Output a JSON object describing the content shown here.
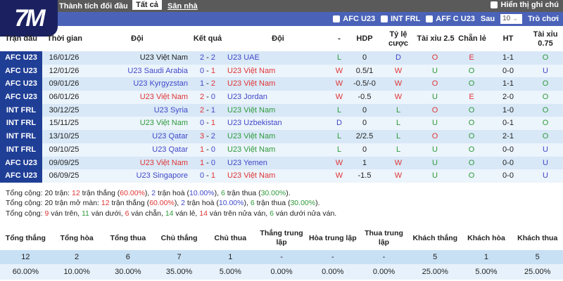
{
  "logo": "7M",
  "topbar": {
    "title": "Thành tích đối đầu",
    "tab_all": "Tất cả",
    "tab_home": "Sân nhà",
    "show_notes": "Hiển thị ghi chú"
  },
  "filters": {
    "items": [
      "AFC U23",
      "INT FRL",
      "AFF C U23"
    ],
    "after_label": "Sau",
    "count": "10",
    "games_label": "Trò chơi"
  },
  "columns": [
    "Trận đấu",
    "Thời gian",
    "Đội",
    "Kết quả",
    "Đội",
    "-",
    "HDP",
    "Tỷ lệ cược",
    "Tài xỉu 2.5",
    "Chẵn lẻ",
    "HT",
    "Tài xỉu 0.75"
  ],
  "rows": [
    {
      "league": "AFC U23",
      "date": "16/01/26",
      "home": "U23 Việt Nam",
      "hc": "k",
      "s1": "2",
      "s1c": "b",
      "s2": "2",
      "s2c": "b",
      "away": "U23 UAE",
      "ac": "b",
      "res": "L",
      "resc": "g",
      "hdp": "0",
      "odds": "D",
      "oddsc": "b",
      "ou": "O",
      "ouc": "r",
      "oe": "E",
      "oec": "r",
      "ht": "1-1",
      "ou75": "O",
      "ou75c": "g"
    },
    {
      "league": "AFC U23",
      "date": "12/01/26",
      "home": "U23 Saudi Arabia",
      "hc": "b",
      "s1": "0",
      "s1c": "b",
      "s2": "1",
      "s2c": "r",
      "away": "U23 Việt Nam",
      "ac": "r",
      "res": "W",
      "resc": "r",
      "hdp": "0.5/1",
      "odds": "W",
      "oddsc": "r",
      "ou": "U",
      "ouc": "g",
      "oe": "O",
      "oec": "g",
      "ht": "0-0",
      "ou75": "U",
      "ou75c": "b"
    },
    {
      "league": "AFC U23",
      "date": "09/01/26",
      "home": "U23 Kyrgyzstan",
      "hc": "b",
      "s1": "1",
      "s1c": "b",
      "s2": "2",
      "s2c": "r",
      "away": "U23 Việt Nam",
      "ac": "r",
      "res": "W",
      "resc": "r",
      "hdp": "-0.5/-0",
      "odds": "W",
      "oddsc": "r",
      "ou": "O",
      "ouc": "r",
      "oe": "O",
      "oec": "g",
      "ht": "1-1",
      "ou75": "O",
      "ou75c": "g"
    },
    {
      "league": "AFC U23",
      "date": "06/01/26",
      "home": "U23 Việt Nam",
      "hc": "r",
      "s1": "2",
      "s1c": "r",
      "s2": "0",
      "s2c": "b",
      "away": "U23 Jordan",
      "ac": "b",
      "res": "W",
      "resc": "r",
      "hdp": "-0.5",
      "odds": "W",
      "oddsc": "r",
      "ou": "U",
      "ouc": "g",
      "oe": "E",
      "oec": "r",
      "ht": "2-0",
      "ou75": "O",
      "ou75c": "g"
    },
    {
      "league": "INT FRL",
      "date": "30/12/25",
      "home": "U23 Syria",
      "hc": "b",
      "s1": "2",
      "s1c": "r",
      "s2": "1",
      "s2c": "b",
      "away": "U23 Việt Nam",
      "ac": "g",
      "res": "L",
      "resc": "g",
      "hdp": "0",
      "odds": "L",
      "oddsc": "g",
      "ou": "O",
      "ouc": "r",
      "oe": "O",
      "oec": "g",
      "ht": "1-0",
      "ou75": "O",
      "ou75c": "g"
    },
    {
      "league": "INT FRL",
      "date": "15/11/25",
      "home": "U23 Việt Nam",
      "hc": "g",
      "s1": "0",
      "s1c": "b",
      "s2": "1",
      "s2c": "r",
      "away": "U23 Uzbekistan",
      "ac": "b",
      "res": "D",
      "resc": "b",
      "hdp": "0",
      "odds": "L",
      "oddsc": "g",
      "ou": "U",
      "ouc": "g",
      "oe": "O",
      "oec": "g",
      "ht": "0-1",
      "ou75": "O",
      "ou75c": "g"
    },
    {
      "league": "INT FRL",
      "date": "13/10/25",
      "home": "U23 Qatar",
      "hc": "b",
      "s1": "3",
      "s1c": "r",
      "s2": "2",
      "s2c": "b",
      "away": "U23 Việt Nam",
      "ac": "g",
      "res": "L",
      "resc": "g",
      "hdp": "2/2.5",
      "odds": "L",
      "oddsc": "g",
      "ou": "O",
      "ouc": "r",
      "oe": "O",
      "oec": "g",
      "ht": "2-1",
      "ou75": "O",
      "ou75c": "g"
    },
    {
      "league": "INT FRL",
      "date": "09/10/25",
      "home": "U23 Qatar",
      "hc": "b",
      "s1": "1",
      "s1c": "r",
      "s2": "0",
      "s2c": "b",
      "away": "U23 Việt Nam",
      "ac": "g",
      "res": "L",
      "resc": "g",
      "hdp": "0",
      "odds": "L",
      "oddsc": "g",
      "ou": "U",
      "ouc": "g",
      "oe": "O",
      "oec": "g",
      "ht": "0-0",
      "ou75": "U",
      "ou75c": "b"
    },
    {
      "league": "AFC U23",
      "date": "09/09/25",
      "home": "U23 Việt Nam",
      "hc": "r",
      "s1": "1",
      "s1c": "r",
      "s2": "0",
      "s2c": "b",
      "away": "U23 Yemen",
      "ac": "b",
      "res": "W",
      "resc": "r",
      "hdp": "1",
      "odds": "W",
      "oddsc": "r",
      "ou": "U",
      "ouc": "g",
      "oe": "O",
      "oec": "g",
      "ht": "0-0",
      "ou75": "U",
      "ou75c": "b"
    },
    {
      "league": "AFC U23",
      "date": "06/09/25",
      "home": "U23 Singapore",
      "hc": "b",
      "s1": "0",
      "s1c": "b",
      "s2": "1",
      "s2c": "r",
      "away": "U23 Việt Nam",
      "ac": "r",
      "res": "W",
      "resc": "r",
      "hdp": "-1.5",
      "odds": "W",
      "oddsc": "r",
      "ou": "U",
      "ouc": "g",
      "oe": "O",
      "oec": "g",
      "ht": "0-0",
      "ou75": "U",
      "ou75c": "b"
    }
  ],
  "summary": [
    [
      [
        "Tổng cộng: 20 trận: ",
        "k"
      ],
      [
        "12",
        "r"
      ],
      [
        " trận thắng (",
        "k"
      ],
      [
        "60.00%",
        "r"
      ],
      [
        "), ",
        "k"
      ],
      [
        "2",
        "b"
      ],
      [
        " trận hoà (",
        "k"
      ],
      [
        "10.00%",
        "b"
      ],
      [
        "), ",
        "k"
      ],
      [
        "6",
        "g"
      ],
      [
        " trận thua (",
        "k"
      ],
      [
        "30.00%",
        "g"
      ],
      [
        ").",
        "k"
      ]
    ],
    [
      [
        "Tổng cộng: 20 trận mở màn: ",
        "k"
      ],
      [
        "12",
        "r"
      ],
      [
        " trận thắng (",
        "k"
      ],
      [
        "60.00%",
        "r"
      ],
      [
        "), ",
        "k"
      ],
      [
        "2",
        "b"
      ],
      [
        " trận hoà (",
        "k"
      ],
      [
        "10.00%",
        "b"
      ],
      [
        "), ",
        "k"
      ],
      [
        "6",
        "g"
      ],
      [
        " trận thua (",
        "k"
      ],
      [
        "30.00%",
        "g"
      ],
      [
        ").",
        "k"
      ]
    ],
    [
      [
        "Tổng cộng: ",
        "k"
      ],
      [
        "9",
        "r"
      ],
      [
        " ván trên, ",
        "k"
      ],
      [
        "11",
        "g"
      ],
      [
        " ván dưới, ",
        "k"
      ],
      [
        "6",
        "r"
      ],
      [
        " ván chẵn, ",
        "k"
      ],
      [
        "14",
        "g"
      ],
      [
        " ván lẻ, ",
        "k"
      ],
      [
        "14",
        "r"
      ],
      [
        " ván trên nửa ván, ",
        "k"
      ],
      [
        "6",
        "g"
      ],
      [
        " ván dưới nửa ván.",
        "k"
      ]
    ]
  ],
  "stats": {
    "headers": [
      "Tổng thắng",
      "Tổng hòa",
      "Tổng thua",
      "Chủ thắng",
      "Chủ thua",
      "Thắng trung lập",
      "Hòa trung lập",
      "Thua trung lập",
      "Khách thắng",
      "Khách hòa",
      "Khách thua"
    ],
    "counts": [
      "12",
      "2",
      "6",
      "7",
      "1",
      "-",
      "-",
      "-",
      "5",
      "1",
      "5"
    ],
    "percents": [
      "60.00%",
      "10.00%",
      "30.00%",
      "35.00%",
      "5.00%",
      "0.00%",
      "0.00%",
      "0.00%",
      "25.00%",
      "5.00%",
      "25.00%"
    ]
  },
  "colors": {
    "r": "#e03535",
    "g": "#2e9a3a",
    "b": "#4048c8",
    "league_bg": "#1f3e96",
    "bar": "#4a63b8"
  }
}
